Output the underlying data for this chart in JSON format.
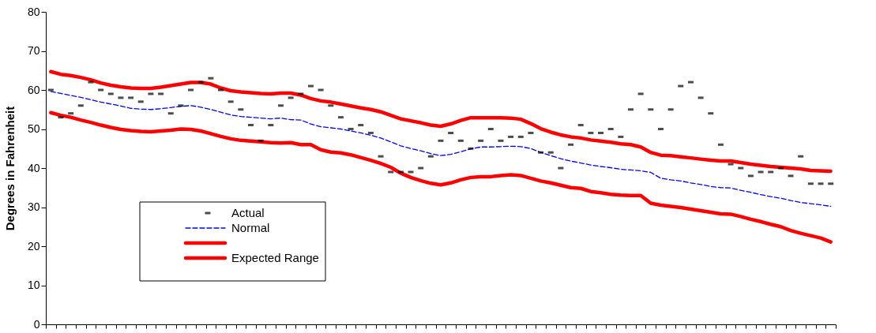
{
  "chart_data": {
    "type": "scatter",
    "ylabel": "Degrees in Fahrenheit",
    "categories": [
      null,
      null,
      null,
      null,
      null,
      null,
      null,
      null,
      null,
      null,
      null,
      null,
      null,
      null,
      null,
      null,
      null,
      null,
      null,
      null,
      null,
      null,
      null,
      null,
      null,
      null,
      null,
      null,
      null,
      null,
      null,
      null,
      null,
      null,
      null,
      null,
      null,
      null,
      null,
      null,
      null,
      null,
      null,
      null,
      null,
      null,
      null,
      null,
      null,
      null,
      null,
      null,
      null,
      null,
      null,
      null,
      null,
      null,
      null,
      null,
      null,
      null,
      null,
      null,
      null,
      null,
      null,
      null,
      null,
      null,
      null,
      null,
      null,
      null,
      null,
      null,
      null,
      null,
      null
    ],
    "series": [
      {
        "name": "Actual",
        "type": "scatter",
        "color": "#000000",
        "values": [
          60,
          53,
          54,
          56,
          62,
          60,
          59,
          58,
          58,
          57,
          59,
          59,
          54,
          56,
          60,
          62,
          63,
          60,
          57,
          55,
          51,
          47,
          51,
          56,
          58,
          59,
          61,
          60,
          56,
          53,
          50,
          51,
          49,
          43,
          39,
          39,
          39,
          40,
          43,
          47,
          49,
          47,
          45,
          47,
          50,
          47,
          48,
          48,
          49,
          44,
          44,
          40,
          46,
          51,
          49,
          49,
          50,
          48,
          55,
          59,
          55,
          50,
          55,
          61,
          62,
          58,
          54,
          46,
          41,
          40,
          38,
          39,
          39,
          40,
          38,
          43,
          36,
          36,
          36
        ]
      },
      {
        "name": "Normal",
        "type": "line",
        "line_style": "dashed",
        "color": "#0000ff",
        "values": [
          59.6,
          59.1,
          58.6,
          58.1,
          57.5,
          56.9,
          56.4,
          55.9,
          55.3,
          55.1,
          55,
          55.2,
          55.5,
          55.8,
          56,
          55.6,
          55,
          54.3,
          53.6,
          53.2,
          53,
          52.8,
          52.6,
          52.8,
          52.4,
          52.3,
          51.3,
          50.6,
          50.3,
          50,
          49.5,
          49,
          48.4,
          47.7,
          46.7,
          45.7,
          45,
          44.4,
          43.7,
          43.2,
          43.5,
          44.2,
          44.9,
          45.4,
          45.4,
          45.5,
          45.6,
          45.5,
          45,
          44,
          43.2,
          42.4,
          41.8,
          41.3,
          40.8,
          40.4,
          40.1,
          39.7,
          39.5,
          39.3,
          38.9,
          37.4,
          37,
          36.7,
          36.2,
          35.8,
          35.3,
          35,
          34.9,
          34.3,
          33.8,
          33.2,
          32.7,
          32.3,
          31.7,
          31.2,
          30.9,
          30.6,
          30.2
        ]
      },
      {
        "type": "line",
        "line_style": "solid",
        "color": "#ff0000",
        "values": [
          64.7,
          64,
          63.7,
          63.2,
          62.6,
          61.8,
          61.2,
          60.8,
          60.5,
          60.4,
          60.4,
          60.7,
          61.1,
          61.5,
          61.9,
          61.9,
          61.5,
          60.5,
          59.8,
          59.5,
          59.3,
          59.1,
          59,
          59.2,
          59.2,
          58.7,
          57.8,
          57.2,
          56.9,
          56.4,
          55.9,
          55.4,
          55,
          54.4,
          53.5,
          52.6,
          52.1,
          51.6,
          51,
          50.7,
          51.3,
          52.2,
          52.9,
          52.9,
          52.9,
          52.9,
          52.8,
          52.5,
          51.4,
          50.1,
          49.2,
          48.5,
          48,
          47.7,
          47.2,
          46.9,
          46.6,
          46.2,
          46,
          45.4,
          44,
          43.3,
          43.2,
          42.9,
          42.6,
          42.3,
          42,
          41.8,
          41.8,
          41.4,
          41,
          40.7,
          40.4,
          40.2,
          40,
          39.8,
          39.4,
          39.3,
          39.2
        ]
      },
      {
        "name": "Expected Range",
        "type": "line",
        "line_style": "solid",
        "color": "#ff0000",
        "values": [
          54.2,
          53.5,
          53,
          52.3,
          51.7,
          51,
          50.4,
          49.9,
          49.6,
          49.4,
          49.3,
          49.5,
          49.7,
          50,
          49.9,
          49.5,
          48.8,
          48.1,
          47.5,
          47.1,
          46.9,
          46.7,
          46.5,
          46.4,
          46.5,
          46,
          46,
          44.7,
          44.1,
          43.9,
          43.4,
          42.7,
          42,
          41.2,
          40.2,
          38.7,
          37.6,
          36.8,
          36.1,
          35.7,
          36.2,
          37,
          37.6,
          37.8,
          37.8,
          38.1,
          38.3,
          38.1,
          37.4,
          36.7,
          36.2,
          35.6,
          35,
          34.8,
          34,
          33.7,
          33.3,
          33.1,
          33,
          33,
          31,
          30.5,
          30.2,
          29.9,
          29.5,
          29.1,
          28.7,
          28.3,
          28.2,
          27.6,
          26.9,
          26.3,
          25.6,
          25,
          24,
          23.3,
          22.7,
          22.1,
          21.1
        ]
      }
    ],
    "ylim": [
      0,
      80
    ],
    "yticks": [
      0,
      10,
      20,
      30,
      40,
      50,
      60,
      70,
      80
    ],
    "grid": false,
    "legend": "bottom left",
    "tick_labels": "y"
  }
}
